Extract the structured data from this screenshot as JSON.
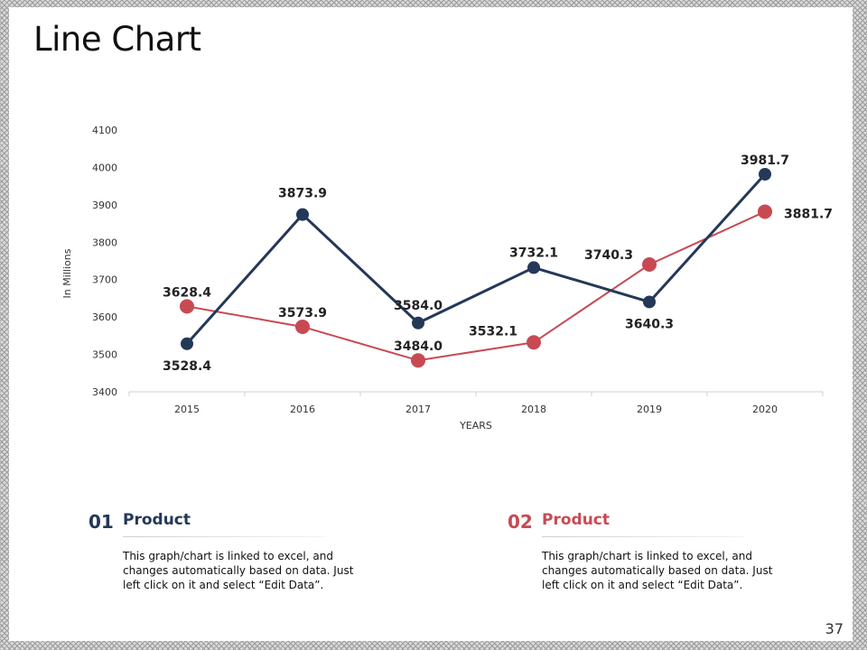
{
  "slide": {
    "title": "Line Chart",
    "page_number": "37"
  },
  "colors": {
    "navy": "#243858",
    "red": "#c74a53"
  },
  "chart_data": {
    "type": "line",
    "categories": [
      "2015",
      "2016",
      "2017",
      "2018",
      "2019",
      "2020"
    ],
    "series": [
      {
        "name": "Product 01",
        "color": "#243858",
        "values": [
          3528.4,
          3873.9,
          3584.0,
          3732.1,
          3640.3,
          3981.7
        ],
        "labels": [
          "3528.4",
          "3873.9",
          "3584.0",
          "3732.1",
          "3640.3",
          "3981.7"
        ]
      },
      {
        "name": "Product 02",
        "color": "#c74a53",
        "values": [
          3628.4,
          3573.9,
          3484.0,
          3532.1,
          3740.3,
          3881.7
        ],
        "labels": [
          "3628.4",
          "3573.9",
          "3484.0",
          "3532.1",
          "3740.3",
          "3881.7"
        ]
      }
    ],
    "yticks": [
      "3400",
      "3500",
      "3600",
      "3700",
      "3800",
      "3900",
      "4000",
      "4100"
    ],
    "ylim": [
      3400,
      4100
    ],
    "xlabel": "YEARS",
    "ylabel": "In Millions"
  },
  "items": [
    {
      "number": "01",
      "title": "Product",
      "description": "This graph/chart is linked to excel, and changes automatically based on data. Just left click on it and select “Edit Data”."
    },
    {
      "number": "02",
      "title": "Product",
      "description": "This graph/chart is linked to excel, and changes automatically based on data. Just left click on it and select “Edit Data”."
    }
  ]
}
